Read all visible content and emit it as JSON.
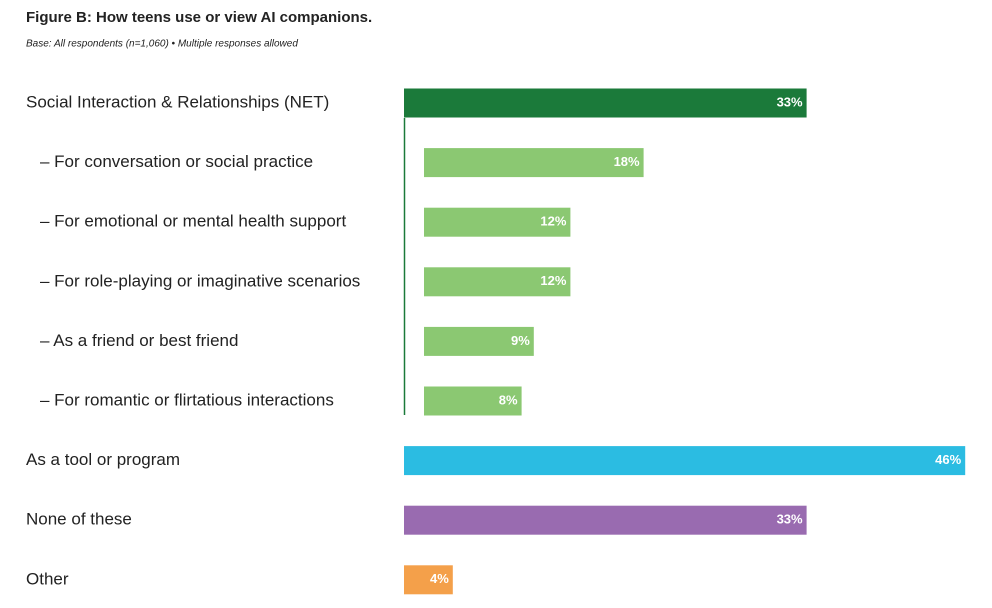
{
  "chart_data": {
    "type": "bar",
    "orientation": "horizontal",
    "title": "Figure B: How teens use or view AI companions.",
    "subtitle": "Base: All respondents (n=1,060) • Multiple responses allowed",
    "categories": [
      "Social Interaction & Relationships (NET)",
      "– For conversation or social practice",
      "– For emotional or mental health support",
      "– For role-playing or imaginative scenarios",
      "– As a friend or best friend",
      "– For romantic or flirtatious interactions",
      "As a tool or program",
      "None of these",
      "Other"
    ],
    "values": [
      33,
      18,
      12,
      12,
      9,
      8,
      46,
      33,
      4
    ],
    "value_labels": [
      "33%",
      "18%",
      "12%",
      "12%",
      "9%",
      "8%",
      "46%",
      "33%",
      "4%"
    ],
    "colors": [
      "#1b7a3a",
      "#8bc872",
      "#8bc872",
      "#8bc872",
      "#8bc872",
      "#8bc872",
      "#2bbce2",
      "#996bb0",
      "#f4a04a"
    ]
  }
}
